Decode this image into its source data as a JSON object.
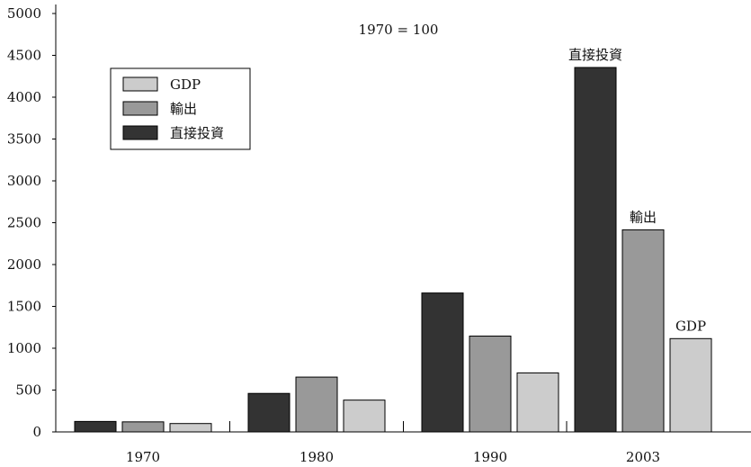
{
  "chart_data": {
    "type": "bar",
    "title": "",
    "annotation": "1970 = 100",
    "xlabel": "",
    "ylabel": "",
    "categories": [
      "1970",
      "1980",
      "1990",
      "2003"
    ],
    "series": [
      {
        "name": "直接投資",
        "color": "#333333",
        "values": [
          125,
          460,
          1660,
          4355
        ]
      },
      {
        "name": "輸出",
        "color": "#999999",
        "values": [
          120,
          655,
          1145,
          2415
        ]
      },
      {
        "name": "GDP",
        "color": "#cccccc",
        "values": [
          100,
          380,
          705,
          1115
        ]
      }
    ],
    "ylim": [
      0,
      5000
    ],
    "yticks": [
      "0",
      "500",
      "1000",
      "1500",
      "2000",
      "2500",
      "3000",
      "3500",
      "4000",
      "4500",
      "5000"
    ],
    "grid": false,
    "legend": {
      "placement": "top-left",
      "entries": [
        "GDP",
        "輸出",
        "直接投資"
      ]
    },
    "bar_labels_2003": [
      "直接投資",
      "輸出",
      "GDP"
    ]
  }
}
